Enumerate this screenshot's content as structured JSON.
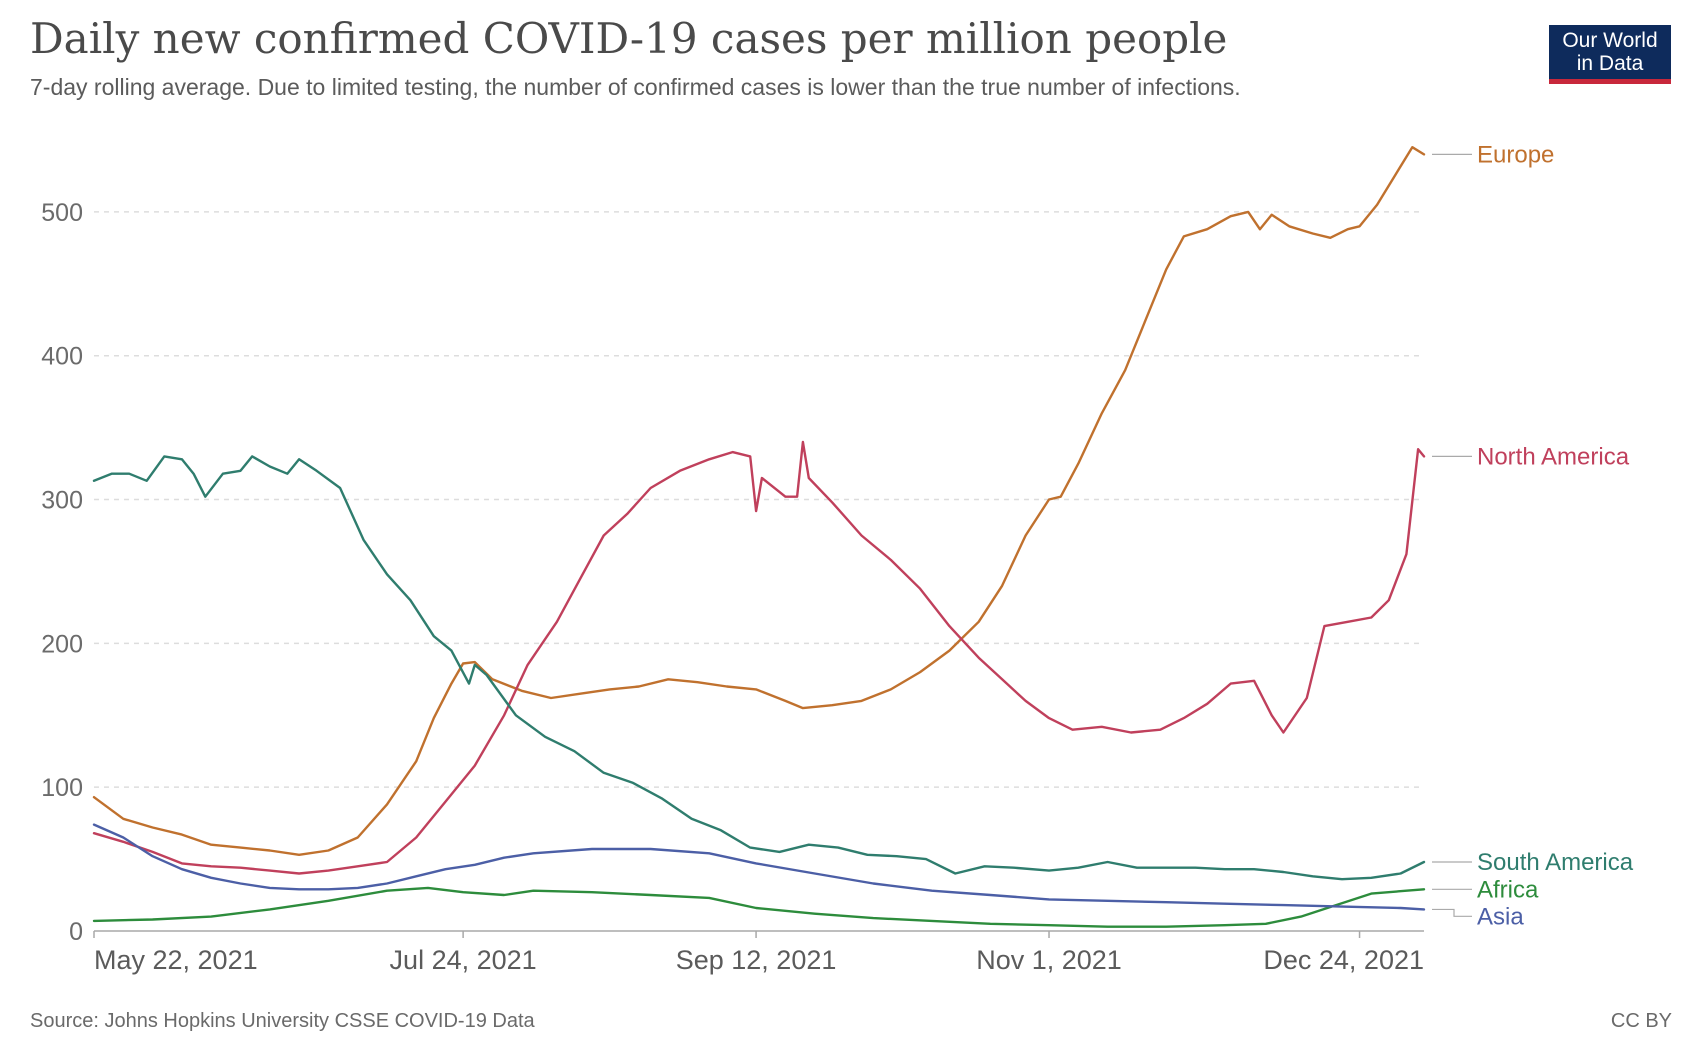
{
  "header": {
    "title": "Daily new confirmed COVID-19 cases per million people",
    "subtitle": "7-day rolling average. Due to limited testing, the number of confirmed cases is lower than the true number of infections.",
    "logo_line1": "Our World",
    "logo_line2": "in Data"
  },
  "footer": {
    "source": "Source: Johns Hopkins University CSSE COVID-19 Data",
    "license": "CC BY"
  },
  "chart_data": {
    "type": "line",
    "title": "Daily new confirmed COVID-19 cases per million people",
    "subtitle": "7-day rolling average. Due to limited testing, the number of confirmed cases is lower than the true number of infections.",
    "x_start": "2021-05-22",
    "x_end": "2022-01-04",
    "x_ticks": [
      {
        "date": "2021-05-22",
        "label": "May 22, 2021"
      },
      {
        "date": "2021-07-24",
        "label": "Jul 24, 2021"
      },
      {
        "date": "2021-09-12",
        "label": "Sep 12, 2021"
      },
      {
        "date": "2021-11-01",
        "label": "Nov 1, 2021"
      },
      {
        "date": "2021-12-24",
        "label": "Dec 24, 2021"
      }
    ],
    "y_ticks": [
      0,
      100,
      200,
      300,
      400,
      500
    ],
    "ylim": [
      0,
      550
    ],
    "grid": "horizontal-dashed",
    "legend": "line-end labels",
    "series": [
      {
        "name": "Europe",
        "color": "#c0712e",
        "points": [
          [
            "2021-05-22",
            93
          ],
          [
            "2021-05-27",
            78
          ],
          [
            "2021-06-01",
            72
          ],
          [
            "2021-06-06",
            67
          ],
          [
            "2021-06-11",
            60
          ],
          [
            "2021-06-16",
            58
          ],
          [
            "2021-06-21",
            56
          ],
          [
            "2021-06-26",
            53
          ],
          [
            "2021-07-01",
            56
          ],
          [
            "2021-07-06",
            65
          ],
          [
            "2021-07-11",
            88
          ],
          [
            "2021-07-16",
            118
          ],
          [
            "2021-07-19",
            148
          ],
          [
            "2021-07-22",
            172
          ],
          [
            "2021-07-24",
            186
          ],
          [
            "2021-07-26",
            187
          ],
          [
            "2021-07-29",
            175
          ],
          [
            "2021-08-03",
            167
          ],
          [
            "2021-08-08",
            162
          ],
          [
            "2021-08-13",
            165
          ],
          [
            "2021-08-18",
            168
          ],
          [
            "2021-08-23",
            170
          ],
          [
            "2021-08-28",
            175
          ],
          [
            "2021-09-02",
            173
          ],
          [
            "2021-09-07",
            170
          ],
          [
            "2021-09-12",
            168
          ],
          [
            "2021-09-17",
            160
          ],
          [
            "2021-09-20",
            155
          ],
          [
            "2021-09-25",
            157
          ],
          [
            "2021-09-30",
            160
          ],
          [
            "2021-10-05",
            168
          ],
          [
            "2021-10-10",
            180
          ],
          [
            "2021-10-15",
            195
          ],
          [
            "2021-10-20",
            215
          ],
          [
            "2021-10-24",
            240
          ],
          [
            "2021-10-28",
            275
          ],
          [
            "2021-11-01",
            300
          ],
          [
            "2021-11-03",
            302
          ],
          [
            "2021-11-06",
            325
          ],
          [
            "2021-11-10",
            360
          ],
          [
            "2021-11-14",
            390
          ],
          [
            "2021-11-18",
            430
          ],
          [
            "2021-11-21",
            460
          ],
          [
            "2021-11-24",
            483
          ],
          [
            "2021-11-28",
            488
          ],
          [
            "2021-12-02",
            497
          ],
          [
            "2021-12-05",
            500
          ],
          [
            "2021-12-07",
            488
          ],
          [
            "2021-12-09",
            498
          ],
          [
            "2021-12-12",
            490
          ],
          [
            "2021-12-16",
            485
          ],
          [
            "2021-12-19",
            482
          ],
          [
            "2021-12-22",
            488
          ],
          [
            "2021-12-24",
            490
          ],
          [
            "2021-12-27",
            505
          ],
          [
            "2021-12-30",
            525
          ],
          [
            "2022-01-02",
            545
          ],
          [
            "2022-01-04",
            540
          ]
        ]
      },
      {
        "name": "North America",
        "color": "#c0405c",
        "points": [
          [
            "2021-05-22",
            68
          ],
          [
            "2021-05-27",
            62
          ],
          [
            "2021-06-01",
            55
          ],
          [
            "2021-06-06",
            47
          ],
          [
            "2021-06-11",
            45
          ],
          [
            "2021-06-16",
            44
          ],
          [
            "2021-06-21",
            42
          ],
          [
            "2021-06-26",
            40
          ],
          [
            "2021-07-01",
            42
          ],
          [
            "2021-07-06",
            45
          ],
          [
            "2021-07-11",
            48
          ],
          [
            "2021-07-16",
            65
          ],
          [
            "2021-07-21",
            90
          ],
          [
            "2021-07-26",
            115
          ],
          [
            "2021-07-31",
            150
          ],
          [
            "2021-08-04",
            185
          ],
          [
            "2021-08-09",
            215
          ],
          [
            "2021-08-13",
            245
          ],
          [
            "2021-08-17",
            275
          ],
          [
            "2021-08-21",
            290
          ],
          [
            "2021-08-25",
            308
          ],
          [
            "2021-08-30",
            320
          ],
          [
            "2021-09-04",
            328
          ],
          [
            "2021-09-08",
            333
          ],
          [
            "2021-09-11",
            330
          ],
          [
            "2021-09-12",
            292
          ],
          [
            "2021-09-13",
            315
          ],
          [
            "2021-09-17",
            302
          ],
          [
            "2021-09-19",
            302
          ],
          [
            "2021-09-20",
            340
          ],
          [
            "2021-09-21",
            315
          ],
          [
            "2021-09-25",
            298
          ],
          [
            "2021-09-30",
            275
          ],
          [
            "2021-10-05",
            258
          ],
          [
            "2021-10-10",
            238
          ],
          [
            "2021-10-15",
            212
          ],
          [
            "2021-10-20",
            190
          ],
          [
            "2021-10-24",
            175
          ],
          [
            "2021-10-28",
            160
          ],
          [
            "2021-11-01",
            148
          ],
          [
            "2021-11-05",
            140
          ],
          [
            "2021-11-10",
            142
          ],
          [
            "2021-11-15",
            138
          ],
          [
            "2021-11-20",
            140
          ],
          [
            "2021-11-24",
            148
          ],
          [
            "2021-11-28",
            158
          ],
          [
            "2021-12-02",
            172
          ],
          [
            "2021-12-06",
            174
          ],
          [
            "2021-12-09",
            150
          ],
          [
            "2021-12-11",
            138
          ],
          [
            "2021-12-15",
            162
          ],
          [
            "2021-12-18",
            212
          ],
          [
            "2021-12-22",
            215
          ],
          [
            "2021-12-26",
            218
          ],
          [
            "2021-12-29",
            230
          ],
          [
            "2022-01-01",
            262
          ],
          [
            "2022-01-03",
            335
          ],
          [
            "2022-01-04",
            330
          ]
        ]
      },
      {
        "name": "South America",
        "color": "#2f7d6e",
        "points": [
          [
            "2021-05-22",
            313
          ],
          [
            "2021-05-25",
            318
          ],
          [
            "2021-05-28",
            318
          ],
          [
            "2021-05-31",
            313
          ],
          [
            "2021-06-03",
            330
          ],
          [
            "2021-06-06",
            328
          ],
          [
            "2021-06-08",
            318
          ],
          [
            "2021-06-10",
            302
          ],
          [
            "2021-06-13",
            318
          ],
          [
            "2021-06-16",
            320
          ],
          [
            "2021-06-18",
            330
          ],
          [
            "2021-06-21",
            323
          ],
          [
            "2021-06-24",
            318
          ],
          [
            "2021-06-26",
            328
          ],
          [
            "2021-06-29",
            320
          ],
          [
            "2021-07-03",
            308
          ],
          [
            "2021-07-07",
            272
          ],
          [
            "2021-07-11",
            248
          ],
          [
            "2021-07-15",
            230
          ],
          [
            "2021-07-19",
            205
          ],
          [
            "2021-07-22",
            195
          ],
          [
            "2021-07-25",
            172
          ],
          [
            "2021-07-26",
            185
          ],
          [
            "2021-07-28",
            178
          ],
          [
            "2021-08-02",
            150
          ],
          [
            "2021-08-07",
            135
          ],
          [
            "2021-08-12",
            125
          ],
          [
            "2021-08-17",
            110
          ],
          [
            "2021-08-22",
            103
          ],
          [
            "2021-08-27",
            92
          ],
          [
            "2021-09-01",
            78
          ],
          [
            "2021-09-06",
            70
          ],
          [
            "2021-09-11",
            58
          ],
          [
            "2021-09-16",
            55
          ],
          [
            "2021-09-21",
            60
          ],
          [
            "2021-09-26",
            58
          ],
          [
            "2021-10-01",
            53
          ],
          [
            "2021-10-06",
            52
          ],
          [
            "2021-10-11",
            50
          ],
          [
            "2021-10-16",
            40
          ],
          [
            "2021-10-21",
            45
          ],
          [
            "2021-10-26",
            44
          ],
          [
            "2021-11-01",
            42
          ],
          [
            "2021-11-06",
            44
          ],
          [
            "2021-11-11",
            48
          ],
          [
            "2021-11-16",
            44
          ],
          [
            "2021-11-21",
            44
          ],
          [
            "2021-11-26",
            44
          ],
          [
            "2021-12-01",
            43
          ],
          [
            "2021-12-06",
            43
          ],
          [
            "2021-12-11",
            41
          ],
          [
            "2021-12-16",
            38
          ],
          [
            "2021-12-21",
            36
          ],
          [
            "2021-12-26",
            37
          ],
          [
            "2021-12-31",
            40
          ],
          [
            "2022-01-04",
            48
          ]
        ]
      },
      {
        "name": "Africa",
        "color": "#2d8c3c",
        "points": [
          [
            "2021-05-22",
            7
          ],
          [
            "2021-06-01",
            8
          ],
          [
            "2021-06-11",
            10
          ],
          [
            "2021-06-21",
            15
          ],
          [
            "2021-07-01",
            21
          ],
          [
            "2021-07-11",
            28
          ],
          [
            "2021-07-18",
            30
          ],
          [
            "2021-07-24",
            27
          ],
          [
            "2021-07-31",
            25
          ],
          [
            "2021-08-05",
            28
          ],
          [
            "2021-08-15",
            27
          ],
          [
            "2021-08-25",
            25
          ],
          [
            "2021-09-04",
            23
          ],
          [
            "2021-09-12",
            16
          ],
          [
            "2021-09-22",
            12
          ],
          [
            "2021-10-02",
            9
          ],
          [
            "2021-10-12",
            7
          ],
          [
            "2021-10-22",
            5
          ],
          [
            "2021-11-01",
            4
          ],
          [
            "2021-11-11",
            3
          ],
          [
            "2021-11-21",
            3
          ],
          [
            "2021-12-01",
            4
          ],
          [
            "2021-12-08",
            5
          ],
          [
            "2021-12-14",
            10
          ],
          [
            "2021-12-20",
            18
          ],
          [
            "2021-12-26",
            26
          ],
          [
            "2022-01-01",
            28
          ],
          [
            "2022-01-04",
            29
          ]
        ]
      },
      {
        "name": "Asia",
        "color": "#4c5fa6",
        "points": [
          [
            "2021-05-22",
            74
          ],
          [
            "2021-05-27",
            65
          ],
          [
            "2021-06-01",
            52
          ],
          [
            "2021-06-06",
            43
          ],
          [
            "2021-06-11",
            37
          ],
          [
            "2021-06-16",
            33
          ],
          [
            "2021-06-21",
            30
          ],
          [
            "2021-06-26",
            29
          ],
          [
            "2021-07-01",
            29
          ],
          [
            "2021-07-06",
            30
          ],
          [
            "2021-07-11",
            33
          ],
          [
            "2021-07-16",
            38
          ],
          [
            "2021-07-21",
            43
          ],
          [
            "2021-07-26",
            46
          ],
          [
            "2021-07-31",
            51
          ],
          [
            "2021-08-05",
            54
          ],
          [
            "2021-08-15",
            57
          ],
          [
            "2021-08-25",
            57
          ],
          [
            "2021-09-04",
            54
          ],
          [
            "2021-09-12",
            47
          ],
          [
            "2021-09-22",
            40
          ],
          [
            "2021-10-02",
            33
          ],
          [
            "2021-10-12",
            28
          ],
          [
            "2021-10-22",
            25
          ],
          [
            "2021-11-01",
            22
          ],
          [
            "2021-11-11",
            21
          ],
          [
            "2021-11-21",
            20
          ],
          [
            "2021-12-01",
            19
          ],
          [
            "2021-12-11",
            18
          ],
          [
            "2021-12-21",
            17
          ],
          [
            "2021-12-31",
            16
          ],
          [
            "2022-01-04",
            15
          ]
        ]
      }
    ]
  }
}
